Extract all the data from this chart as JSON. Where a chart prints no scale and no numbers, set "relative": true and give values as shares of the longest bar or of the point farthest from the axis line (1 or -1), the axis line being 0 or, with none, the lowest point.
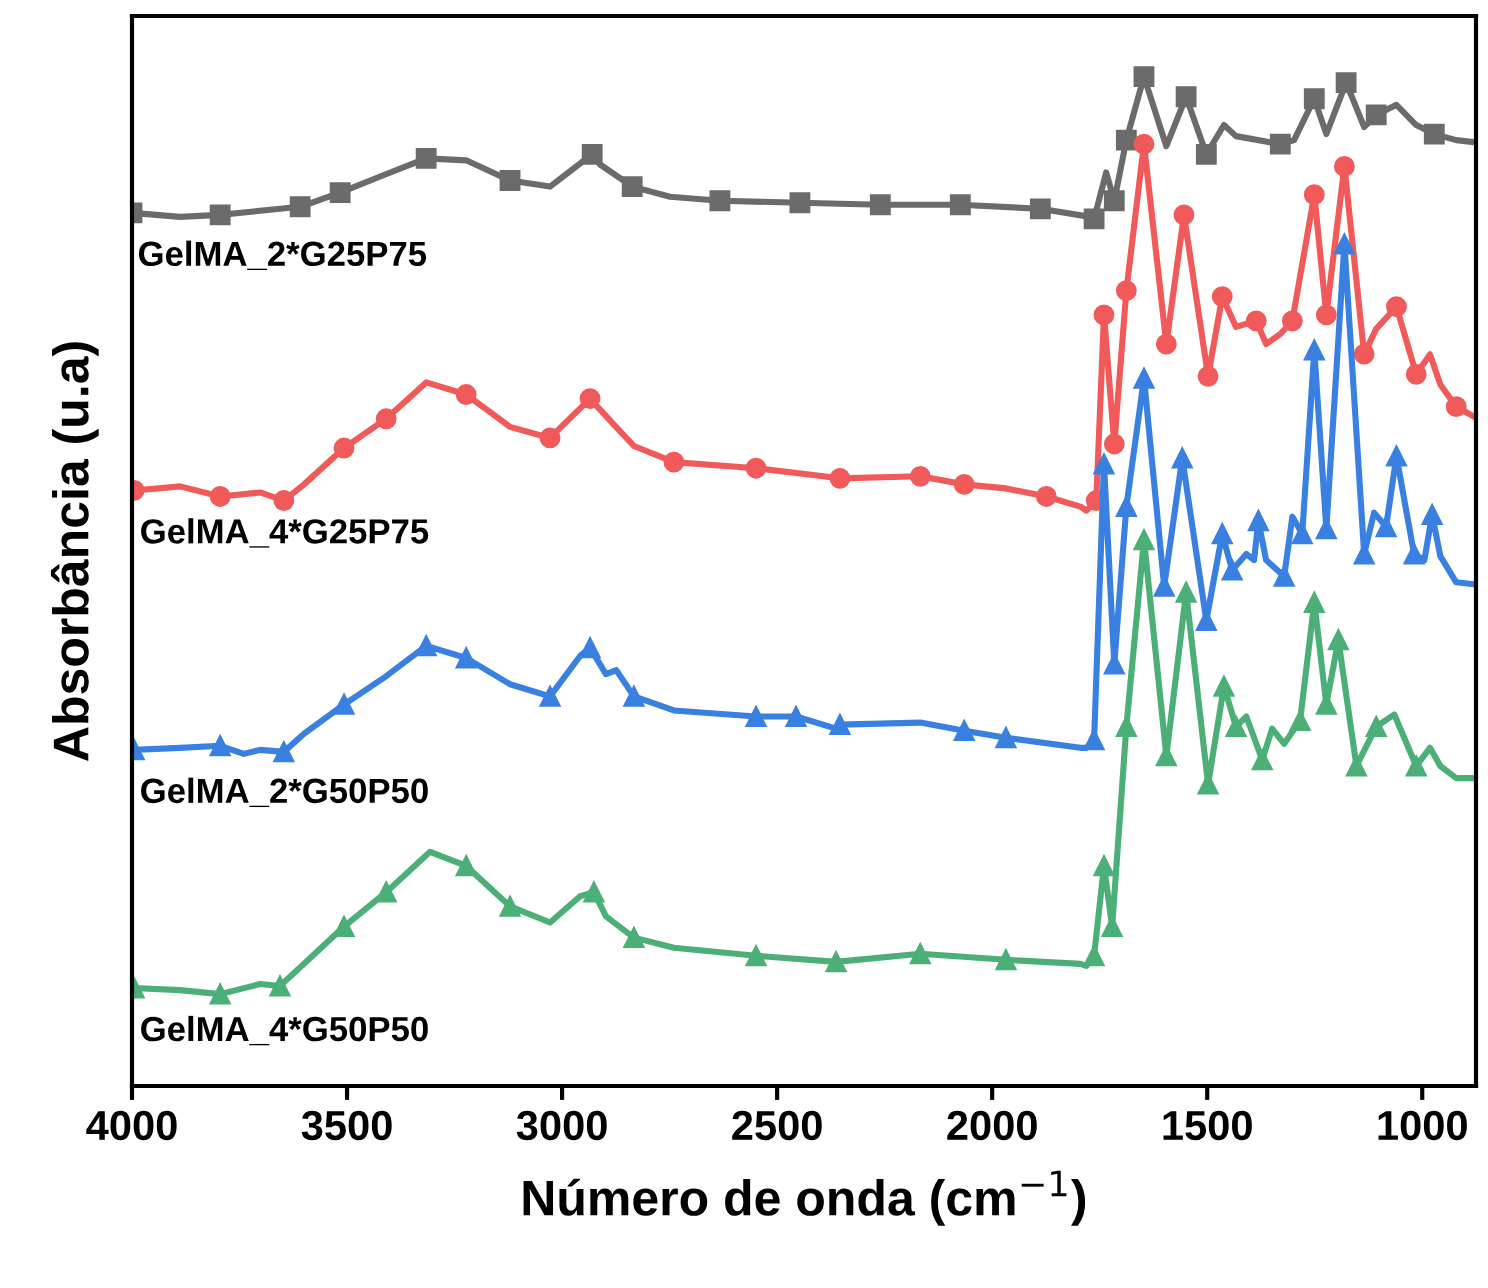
{
  "chart_data": {
    "type": "line",
    "relative": true,
    "xlabel": "Número de onda (cm$^{−1}$)",
    "ylabel": "Absorbância (u.a)",
    "xlim": [
      4000,
      875
    ],
    "xticks": [
      4000,
      3500,
      3000,
      2500,
      2000,
      1500,
      1000
    ],
    "grid": false,
    "legend": false,
    "line_style": "solid",
    "series": [
      {
        "name": "GelMA_2*G25P75",
        "color": "#6b6b6b",
        "marker": "square",
        "x": [
          4000,
          3888,
          3795,
          3702,
          3609,
          3516,
          3423,
          3316,
          3223,
          3121,
          3028,
          2930,
          2912,
          2837,
          2749,
          2633,
          2447,
          2260,
          2074,
          1888,
          1772,
          1763,
          1735,
          1716,
          1688,
          1647,
          1595,
          1549,
          1502,
          1461,
          1433,
          1330,
          1298,
          1251,
          1223,
          1177,
          1135,
          1107,
          1060,
          1014,
          972,
          921,
          879
        ],
        "values": [
          0.865,
          0.861,
          0.863,
          0.867,
          0.871,
          0.885,
          0.901,
          0.919,
          0.917,
          0.897,
          0.891,
          0.923,
          0.913,
          0.891,
          0.881,
          0.877,
          0.875,
          0.873,
          0.873,
          0.869,
          0.861,
          0.859,
          0.905,
          0.877,
          0.937,
          1.0,
          0.931,
          0.98,
          0.923,
          0.952,
          0.941,
          0.933,
          0.937,
          0.978,
          0.943,
          0.994,
          0.95,
          0.962,
          0.972,
          0.952,
          0.943,
          0.937,
          0.935
        ]
      },
      {
        "name": "GelMA_4*G25P75",
        "color": "#f05a5a",
        "marker": "circle",
        "x": [
          3995,
          3888,
          3795,
          3702,
          3647,
          3600,
          3507,
          3409,
          3316,
          3223,
          3121,
          3028,
          2935,
          2879,
          2833,
          2740,
          2549,
          2354,
          2167,
          2065,
          1968,
          1874,
          1795,
          1781,
          1758,
          1740,
          1716,
          1688,
          1647,
          1595,
          1554,
          1498,
          1465,
          1433,
          1386,
          1363,
          1330,
          1302,
          1251,
          1223,
          1181,
          1135,
          1107,
          1060,
          1014,
          982,
          958,
          921,
          879
        ],
        "values": [
          0.59,
          0.594,
          0.584,
          0.588,
          0.58,
          0.596,
          0.632,
          0.661,
          0.697,
          0.685,
          0.653,
          0.642,
          0.681,
          0.655,
          0.634,
          0.618,
          0.612,
          0.602,
          0.604,
          0.596,
          0.592,
          0.584,
          0.574,
          0.57,
          0.58,
          0.764,
          0.636,
          0.788,
          0.933,
          0.735,
          0.863,
          0.703,
          0.782,
          0.752,
          0.758,
          0.735,
          0.745,
          0.758,
          0.883,
          0.764,
          0.911,
          0.725,
          0.75,
          0.772,
          0.705,
          0.725,
          0.695,
          0.673,
          0.663
        ]
      },
      {
        "name": "GelMA_2*G50P50",
        "color": "#3a80e0",
        "marker": "triangle",
        "x": [
          3995,
          3888,
          3795,
          3740,
          3702,
          3647,
          3600,
          3507,
          3409,
          3316,
          3223,
          3121,
          3028,
          2958,
          2935,
          2898,
          2874,
          2833,
          2740,
          2549,
          2456,
          2363,
          2354,
          2167,
          2065,
          1968,
          1795,
          1781,
          1763,
          1740,
          1716,
          1688,
          1647,
          1600,
          1558,
          1502,
          1465,
          1442,
          1409,
          1391,
          1381,
          1363,
          1321,
          1302,
          1279,
          1251,
          1223,
          1181,
          1135,
          1112,
          1084,
          1060,
          1019,
          995,
          977,
          958,
          921,
          879
        ],
        "values": [
          0.333,
          0.335,
          0.337,
          0.329,
          0.333,
          0.331,
          0.349,
          0.378,
          0.406,
          0.436,
          0.424,
          0.398,
          0.386,
          0.426,
          0.434,
          0.408,
          0.412,
          0.386,
          0.372,
          0.366,
          0.366,
          0.354,
          0.358,
          0.36,
          0.352,
          0.345,
          0.335,
          0.335,
          0.343,
          0.616,
          0.418,
          0.574,
          0.701,
          0.495,
          0.622,
          0.461,
          0.547,
          0.511,
          0.527,
          0.521,
          0.56,
          0.521,
          0.505,
          0.564,
          0.547,
          0.729,
          0.552,
          0.834,
          0.527,
          0.568,
          0.554,
          0.624,
          0.527,
          0.521,
          0.566,
          0.525,
          0.499,
          0.497
        ]
      },
      {
        "name": "GelMA_4*G50P50",
        "color": "#4caf78",
        "marker": "triangle",
        "x": [
          3995,
          3888,
          3795,
          3702,
          3656,
          3600,
          3507,
          3409,
          3307,
          3223,
          3121,
          3028,
          2958,
          2926,
          2898,
          2833,
          2740,
          2549,
          2363,
          2167,
          1968,
          1795,
          1781,
          1763,
          1740,
          1721,
          1688,
          1647,
          1595,
          1549,
          1498,
          1461,
          1433,
          1409,
          1372,
          1349,
          1321,
          1284,
          1251,
          1223,
          1195,
          1153,
          1107,
          1065,
          1014,
          982,
          958,
          921,
          879
        ],
        "values": [
          0.097,
          0.095,
          0.091,
          0.101,
          0.099,
          0.121,
          0.158,
          0.192,
          0.232,
          0.218,
          0.178,
          0.162,
          0.188,
          0.192,
          0.168,
          0.147,
          0.137,
          0.129,
          0.123,
          0.131,
          0.125,
          0.121,
          0.119,
          0.129,
          0.218,
          0.158,
          0.356,
          0.541,
          0.327,
          0.489,
          0.299,
          0.396,
          0.356,
          0.366,
          0.323,
          0.354,
          0.339,
          0.362,
          0.479,
          0.378,
          0.442,
          0.317,
          0.356,
          0.368,
          0.317,
          0.335,
          0.317,
          0.305,
          0.305
        ]
      }
    ]
  }
}
